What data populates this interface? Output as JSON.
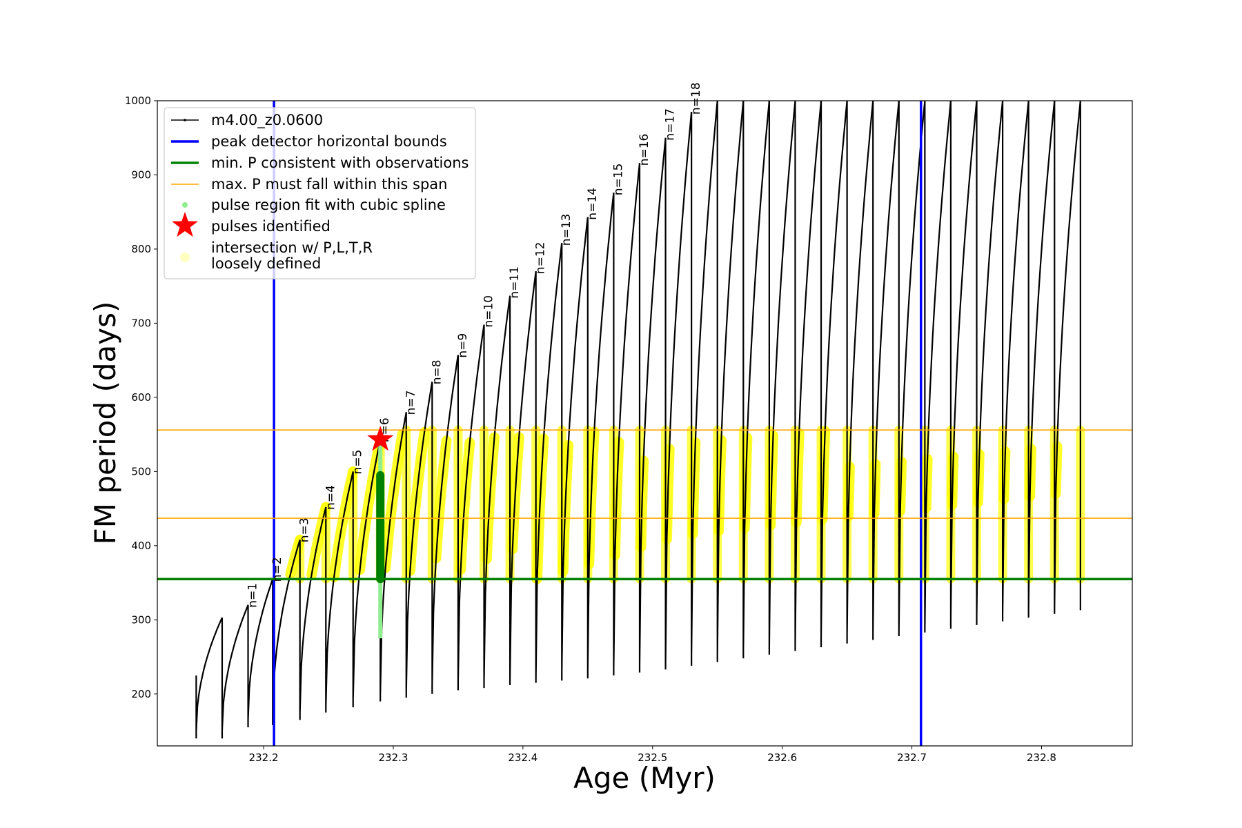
{
  "chart_data": {
    "type": "line",
    "title": "",
    "xlabel": "Age (Myr)",
    "ylabel": "FM period (days)",
    "xlim": [
      232.118,
      232.87
    ],
    "ylim": [
      130,
      1000
    ],
    "x_ticks": [
      "232.2",
      "232.3",
      "232.4",
      "232.5",
      "232.6",
      "232.7",
      "232.8"
    ],
    "y_ticks": [
      "200",
      "300",
      "400",
      "500",
      "600",
      "700",
      "800",
      "900",
      "1000"
    ],
    "grid": false,
    "legend_position": "upper-left",
    "legend": [
      {
        "key": "track",
        "label": "m4.00_z0.0600",
        "color": "#000000"
      },
      {
        "key": "bounds",
        "label": "peak detector horizontal bounds",
        "color": "#0000ff"
      },
      {
        "key": "minP",
        "label": "min. P consistent with observations",
        "color": "#008000"
      },
      {
        "key": "maxP",
        "label": "max. P must fall within this span",
        "color": "#ffa500"
      },
      {
        "key": "spline",
        "label": "pulse region fit with cubic spline",
        "color": "#90ee90"
      },
      {
        "key": "pulses",
        "label": "pulses identified",
        "color": "#ff0000"
      },
      {
        "key": "intersect",
        "label_lines": [
          "intersection w/ P,L,T,R",
          "loosely defined"
        ],
        "color": "#ffff00"
      }
    ],
    "vertical_bounds": [
      232.208,
      232.707
    ],
    "min_period": 355,
    "max_period_span": [
      437,
      556
    ],
    "pulse_identified": {
      "x": 232.29,
      "y": 543
    },
    "pulses": [
      {
        "x": 232.148,
        "min": 140,
        "peak": 225
      },
      {
        "x": 232.168,
        "min": 140,
        "peak": 303
      },
      {
        "x": 232.188,
        "min": 155,
        "peak": 320
      },
      {
        "x": 232.207,
        "min": 158,
        "peak": 355
      },
      {
        "x": 232.228,
        "min": 165,
        "peak": 408
      },
      {
        "x": 232.248,
        "min": 175,
        "peak": 452
      },
      {
        "x": 232.269,
        "min": 182,
        "peak": 500
      },
      {
        "x": 232.29,
        "min": 190,
        "peak": 543
      },
      {
        "x": 232.31,
        "min": 195,
        "peak": 580
      },
      {
        "x": 232.33,
        "min": 200,
        "peak": 621
      },
      {
        "x": 232.35,
        "min": 205,
        "peak": 657
      },
      {
        "x": 232.37,
        "min": 208,
        "peak": 698
      },
      {
        "x": 232.39,
        "min": 212,
        "peak": 737
      },
      {
        "x": 232.41,
        "min": 215,
        "peak": 770
      },
      {
        "x": 232.43,
        "min": 218,
        "peak": 808
      },
      {
        "x": 232.45,
        "min": 221,
        "peak": 843
      },
      {
        "x": 232.47,
        "min": 225,
        "peak": 876
      },
      {
        "x": 232.49,
        "min": 229,
        "peak": 916
      },
      {
        "x": 232.51,
        "min": 233,
        "peak": 950
      },
      {
        "x": 232.53,
        "min": 238,
        "peak": 985
      },
      {
        "x": 232.55,
        "min": 243,
        "peak": 1000
      },
      {
        "x": 232.57,
        "min": 248,
        "peak": 1000
      },
      {
        "x": 232.59,
        "min": 253,
        "peak": 1000
      },
      {
        "x": 232.61,
        "min": 258,
        "peak": 1000
      },
      {
        "x": 232.63,
        "min": 263,
        "peak": 1000
      },
      {
        "x": 232.65,
        "min": 268,
        "peak": 1000
      },
      {
        "x": 232.67,
        "min": 273,
        "peak": 1000
      },
      {
        "x": 232.69,
        "min": 278,
        "peak": 1000
      },
      {
        "x": 232.71,
        "min": 283,
        "peak": 1000
      },
      {
        "x": 232.73,
        "min": 288,
        "peak": 1000
      },
      {
        "x": 232.75,
        "min": 293,
        "peak": 1000
      },
      {
        "x": 232.77,
        "min": 298,
        "peak": 1000
      },
      {
        "x": 232.79,
        "min": 303,
        "peak": 1000
      },
      {
        "x": 232.81,
        "min": 308,
        "peak": 1000
      },
      {
        "x": 232.83,
        "min": 313,
        "peak": 1000
      }
    ],
    "pulse_labels": [
      {
        "text": "n=1",
        "x": 232.188,
        "y": 320
      },
      {
        "text": "n=2",
        "x": 232.207,
        "y": 355
      },
      {
        "text": "n=3",
        "x": 232.228,
        "y": 408
      },
      {
        "text": "n=4",
        "x": 232.248,
        "y": 452
      },
      {
        "text": "n=5",
        "x": 232.269,
        "y": 500
      },
      {
        "text": "n=6",
        "x": 232.29,
        "y": 543
      },
      {
        "text": "n=7",
        "x": 232.31,
        "y": 580
      },
      {
        "text": "n=8",
        "x": 232.33,
        "y": 621
      },
      {
        "text": "n=9",
        "x": 232.35,
        "y": 657
      },
      {
        "text": "n=10",
        "x": 232.37,
        "y": 698
      },
      {
        "text": "n=11",
        "x": 232.39,
        "y": 737
      },
      {
        "text": "n=12",
        "x": 232.41,
        "y": 770
      },
      {
        "text": "n=13",
        "x": 232.43,
        "y": 808
      },
      {
        "text": "n=14",
        "x": 232.45,
        "y": 843
      },
      {
        "text": "n=15",
        "x": 232.47,
        "y": 876
      },
      {
        "text": "n=16",
        "x": 232.49,
        "y": 916
      },
      {
        "text": "n=17",
        "x": 232.51,
        "y": 950
      },
      {
        "text": "n=18",
        "x": 232.53,
        "y": 985
      }
    ]
  }
}
